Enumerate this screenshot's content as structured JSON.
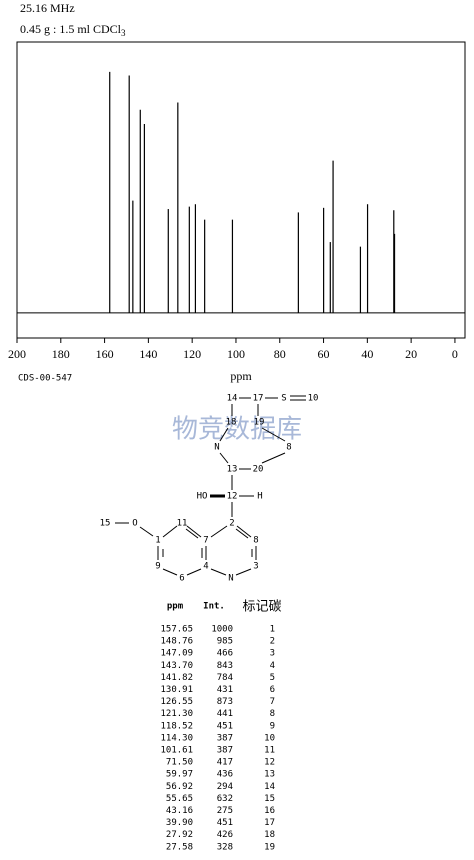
{
  "chart_data": {
    "type": "stem",
    "title": "25.16 MHz",
    "subtitle": [
      "0.45 g : 1.5 ml CDCl",
      "3"
    ],
    "x_label": "ppm",
    "code": "CDS-00-547",
    "color": "#000000",
    "x": [
      157.65,
      148.76,
      147.09,
      143.7,
      141.82,
      130.91,
      126.55,
      121.3,
      118.52,
      114.3,
      101.61,
      71.5,
      59.97,
      56.92,
      55.65,
      43.16,
      39.9,
      27.92,
      27.58
    ],
    "values": [
      1000,
      985,
      466,
      843,
      784,
      431,
      873,
      441,
      451,
      387,
      387,
      417,
      436,
      294,
      632,
      275,
      451,
      426,
      328
    ],
    "xlim": [
      200,
      -4.6
    ],
    "ylim": [
      -104,
      1124
    ],
    "xticks": [
      200,
      180,
      160,
      140,
      120,
      100,
      80,
      60,
      40,
      20,
      0
    ],
    "grid": false
  },
  "watermark": "物竞数据库",
  "structure": {
    "atoms": [
      "14",
      "17",
      "S",
      "10",
      "18",
      "19",
      "N",
      "8",
      "13",
      "20",
      "HO",
      "12",
      "H",
      "15",
      "O",
      "11",
      "2",
      "1",
      "7",
      "8",
      "9",
      "4",
      "3",
      "6",
      "N"
    ]
  },
  "table": {
    "header": [
      "ppm",
      "Int.",
      "标记碳"
    ],
    "rows": [
      [
        "157.65",
        "1000",
        "1"
      ],
      [
        "148.76",
        "985",
        "2"
      ],
      [
        "147.09",
        "466",
        "3"
      ],
      [
        "143.70",
        "843",
        "4"
      ],
      [
        "141.82",
        "784",
        "5"
      ],
      [
        "130.91",
        "431",
        "6"
      ],
      [
        "126.55",
        "873",
        "7"
      ],
      [
        "121.30",
        "441",
        "8"
      ],
      [
        "118.52",
        "451",
        "9"
      ],
      [
        "114.30",
        "387",
        "10"
      ],
      [
        "101.61",
        "387",
        "11"
      ],
      [
        "71.50",
        "417",
        "12"
      ],
      [
        "59.97",
        "436",
        "13"
      ],
      [
        "56.92",
        "294",
        "14"
      ],
      [
        "55.65",
        "632",
        "15"
      ],
      [
        "43.16",
        "275",
        "16"
      ],
      [
        "39.90",
        "451",
        "17"
      ],
      [
        "27.92",
        "426",
        "18"
      ],
      [
        "27.58",
        "328",
        "19"
      ]
    ]
  }
}
